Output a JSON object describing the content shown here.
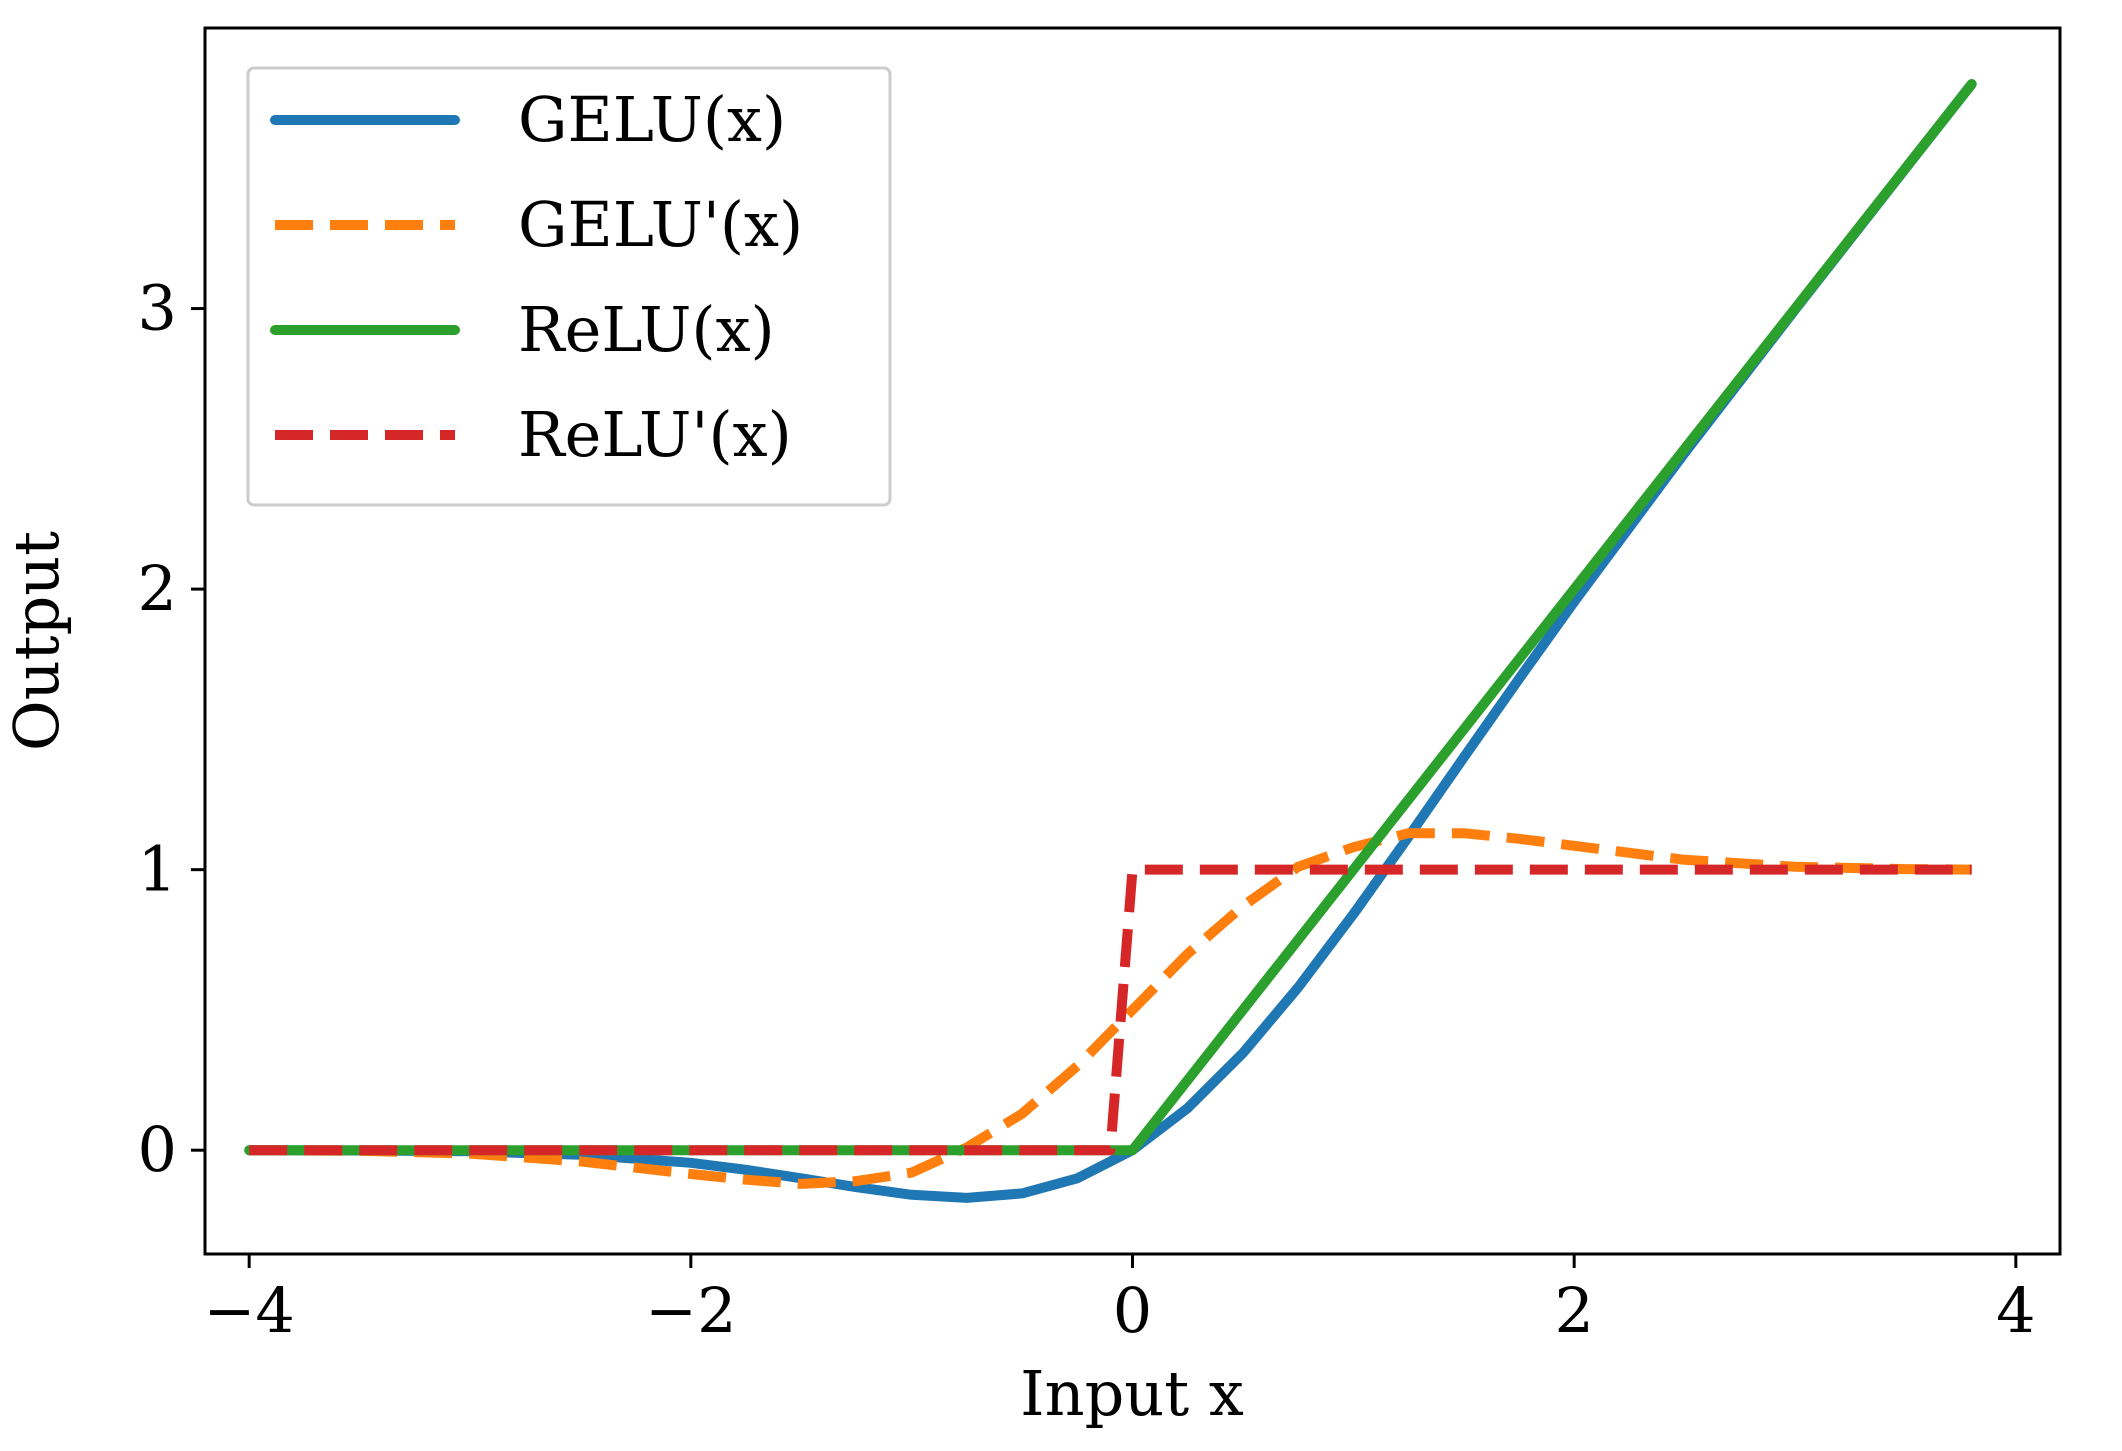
{
  "chart_data": {
    "type": "line",
    "title": "",
    "xlabel": "Input x",
    "ylabel": "Output",
    "xlim": [
      -4.2,
      4.2
    ],
    "ylim": [
      -0.37,
      4.0
    ],
    "grid": false,
    "legend_position": "top-left",
    "x_ticks": [
      {
        "value": -4,
        "label": "−4"
      },
      {
        "value": -2,
        "label": "−2"
      },
      {
        "value": 0,
        "label": "0"
      },
      {
        "value": 2,
        "label": "2"
      },
      {
        "value": 4,
        "label": "4"
      }
    ],
    "y_ticks": [
      {
        "value": 0,
        "label": "0"
      },
      {
        "value": 1,
        "label": "1"
      },
      {
        "value": 2,
        "label": "2"
      },
      {
        "value": 3,
        "label": "3"
      }
    ],
    "series": [
      {
        "name": "GELU(x)",
        "label": "GELU(x)",
        "color": "#1f77b4",
        "style": "solid",
        "x": [
          -4.0,
          -3.5,
          -3.0,
          -2.5,
          -2.0,
          -1.75,
          -1.5,
          -1.25,
          -1.0,
          -0.75,
          -0.5,
          -0.25,
          0.0,
          0.25,
          0.5,
          0.75,
          1.0,
          1.25,
          1.5,
          1.75,
          2.0,
          2.5,
          3.0,
          3.5,
          3.8
        ],
        "y": [
          0.0,
          -0.001,
          -0.004,
          -0.016,
          -0.045,
          -0.07,
          -0.1,
          -0.132,
          -0.159,
          -0.17,
          -0.154,
          -0.1,
          0.0,
          0.15,
          0.346,
          0.58,
          0.841,
          1.117,
          1.4,
          1.68,
          1.955,
          2.485,
          2.996,
          3.499,
          3.8
        ]
      },
      {
        "name": "GELU'(x)",
        "label": "GELU'(x)",
        "color": "#ff7f0e",
        "style": "dashed",
        "x": [
          -4.0,
          -3.5,
          -3.0,
          -2.5,
          -2.0,
          -1.75,
          -1.5,
          -1.25,
          -1.0,
          -0.75,
          -0.5,
          -0.25,
          0.0,
          0.25,
          0.5,
          0.75,
          1.0,
          1.25,
          1.5,
          1.75,
          2.0,
          2.5,
          3.0,
          3.5,
          3.8
        ],
        "y": [
          0.0,
          -0.002,
          -0.012,
          -0.04,
          -0.085,
          -0.105,
          -0.12,
          -0.11,
          -0.08,
          0.01,
          0.13,
          0.3,
          0.5,
          0.7,
          0.87,
          1.01,
          1.08,
          1.13,
          1.13,
          1.11,
          1.085,
          1.035,
          1.01,
          1.002,
          1.0
        ]
      },
      {
        "name": "ReLU(x)",
        "label": "ReLU(x)",
        "color": "#2ca02c",
        "style": "solid",
        "x": [
          -4.0,
          0.0,
          3.8
        ],
        "y": [
          0.0,
          0.0,
          3.8
        ]
      },
      {
        "name": "ReLU'(x)",
        "label": "ReLU'(x)",
        "color": "#d62728",
        "style": "dashed",
        "x": [
          -4.0,
          -0.1,
          0.0,
          3.8
        ],
        "y": [
          0.0,
          0.0,
          1.0,
          1.0
        ]
      }
    ]
  }
}
